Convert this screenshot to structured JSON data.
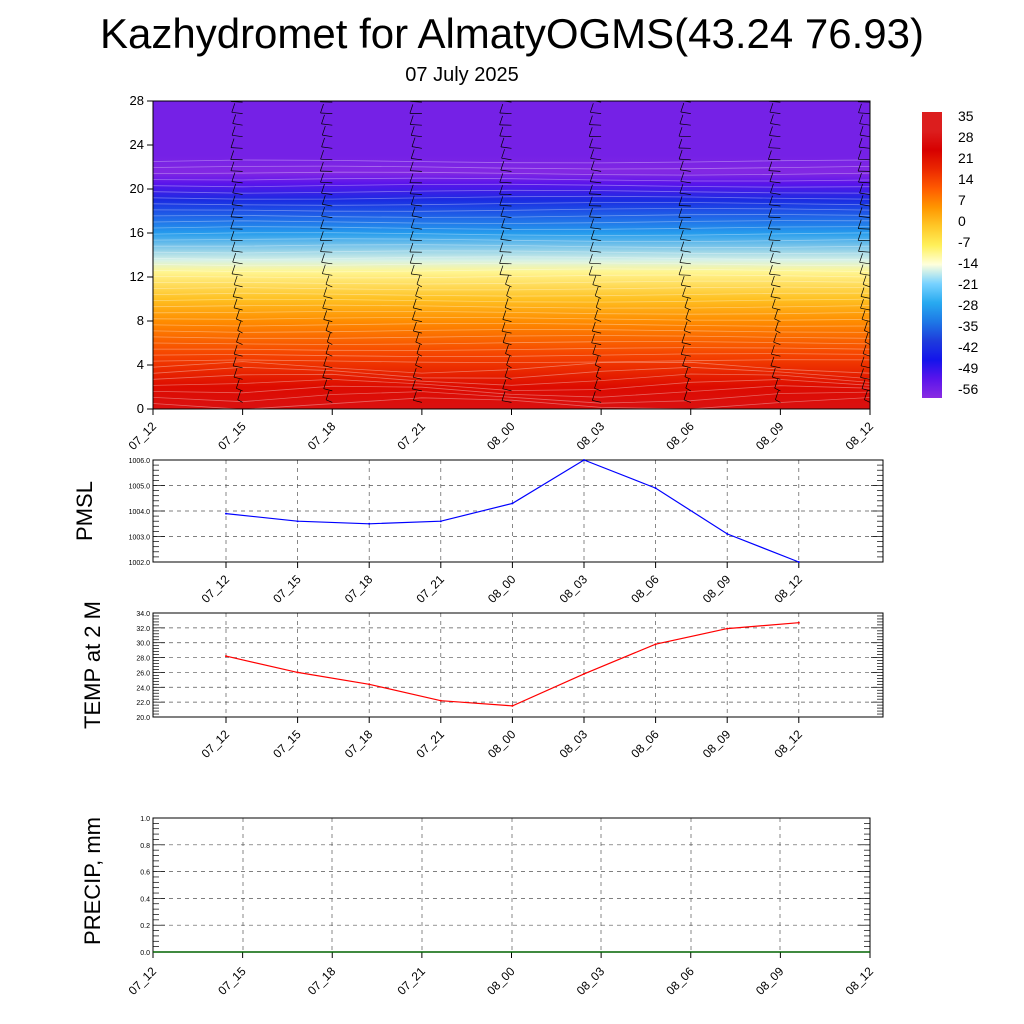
{
  "title": "Kazhydromet for AlmatyOGMS(43.24 76.93)",
  "subtitle": "07 July 2025",
  "chart_data": [
    {
      "type": "heatmap",
      "title": "",
      "xlabel": "",
      "ylabel": "",
      "x_ticks": [
        "07_12",
        "07_15",
        "07_18",
        "07_21",
        "08_00",
        "08_03",
        "08_06",
        "08_09",
        "08_12"
      ],
      "y_ticks": [
        0,
        4,
        8,
        12,
        16,
        20,
        24,
        28
      ],
      "ylim": [
        0,
        28
      ],
      "colorbar_labels": [
        "35",
        "28",
        "21",
        "14",
        "7",
        "0",
        "-7",
        "-14",
        "-21",
        "-28",
        "-35",
        "-42",
        "-49",
        "-56"
      ],
      "temperature_profile": [
        {
          "height": 0,
          "value": 32
        },
        {
          "height": 2,
          "value": 26
        },
        {
          "height": 5,
          "value": 17
        },
        {
          "height": 8,
          "value": 8
        },
        {
          "height": 10,
          "value": 1
        },
        {
          "height": 12.5,
          "value": -10
        },
        {
          "height": 13.5,
          "value": -16
        },
        {
          "height": 16,
          "value": -30
        },
        {
          "height": 19,
          "value": -45
        },
        {
          "height": 20.5,
          "value": -56
        },
        {
          "height": 21.5,
          "value": -62
        },
        {
          "height": 23,
          "value": -60
        },
        {
          "height": 28,
          "value": -60
        }
      ],
      "colors": {
        "hot": "#d81010",
        "warm": "#ff8c00",
        "mid": "#ffffb0",
        "cool": "#30b0f0",
        "cold": "#1010e0",
        "top": "#8a2be2"
      }
    },
    {
      "type": "line",
      "ylabel": "PMSL",
      "x": [
        "07_12",
        "07_15",
        "07_18",
        "07_21",
        "08_00",
        "08_03",
        "08_06",
        "08_09",
        "08_12"
      ],
      "series": [
        {
          "values": [
            1003.9,
            1003.6,
            1003.5,
            1003.6,
            1004.3,
            1006.0,
            1004.9,
            1003.1,
            1002.0
          ]
        }
      ],
      "ylim": [
        1002.0,
        1006.0
      ],
      "y_ticks": [
        "1002.0",
        "1003.0",
        "1004.0",
        "1005.0",
        "1006.0"
      ],
      "grid": true,
      "line_color": "#0000ff"
    },
    {
      "type": "line",
      "ylabel": "TEMP at 2 M",
      "x": [
        "07_12",
        "07_15",
        "07_18",
        "07_21",
        "08_00",
        "08_03",
        "08_06",
        "08_09",
        "08_12"
      ],
      "series": [
        {
          "values": [
            28.2,
            26.0,
            24.4,
            22.2,
            21.5,
            25.8,
            29.8,
            31.9,
            32.7
          ]
        }
      ],
      "ylim": [
        20.0,
        34.0
      ],
      "y_ticks": [
        "20.0",
        "22.0",
        "24.0",
        "26.0",
        "28.0",
        "30.0",
        "32.0",
        "34.0"
      ],
      "grid": true,
      "line_color": "#ff0000"
    },
    {
      "type": "line",
      "ylabel": "PRECIP, mm",
      "x": [
        "07_12",
        "07_15",
        "07_18",
        "07_21",
        "08_00",
        "08_03",
        "08_06",
        "08_09",
        "08_12"
      ],
      "series": [
        {
          "values": [
            0,
            0,
            0,
            0,
            0,
            0,
            0,
            0,
            0
          ]
        }
      ],
      "ylim": [
        0.0,
        1.0
      ],
      "y_ticks": [
        "0.0",
        "0.2",
        "0.4",
        "0.6",
        "0.8",
        "1.0"
      ],
      "grid": true,
      "line_color": "#006400"
    }
  ]
}
